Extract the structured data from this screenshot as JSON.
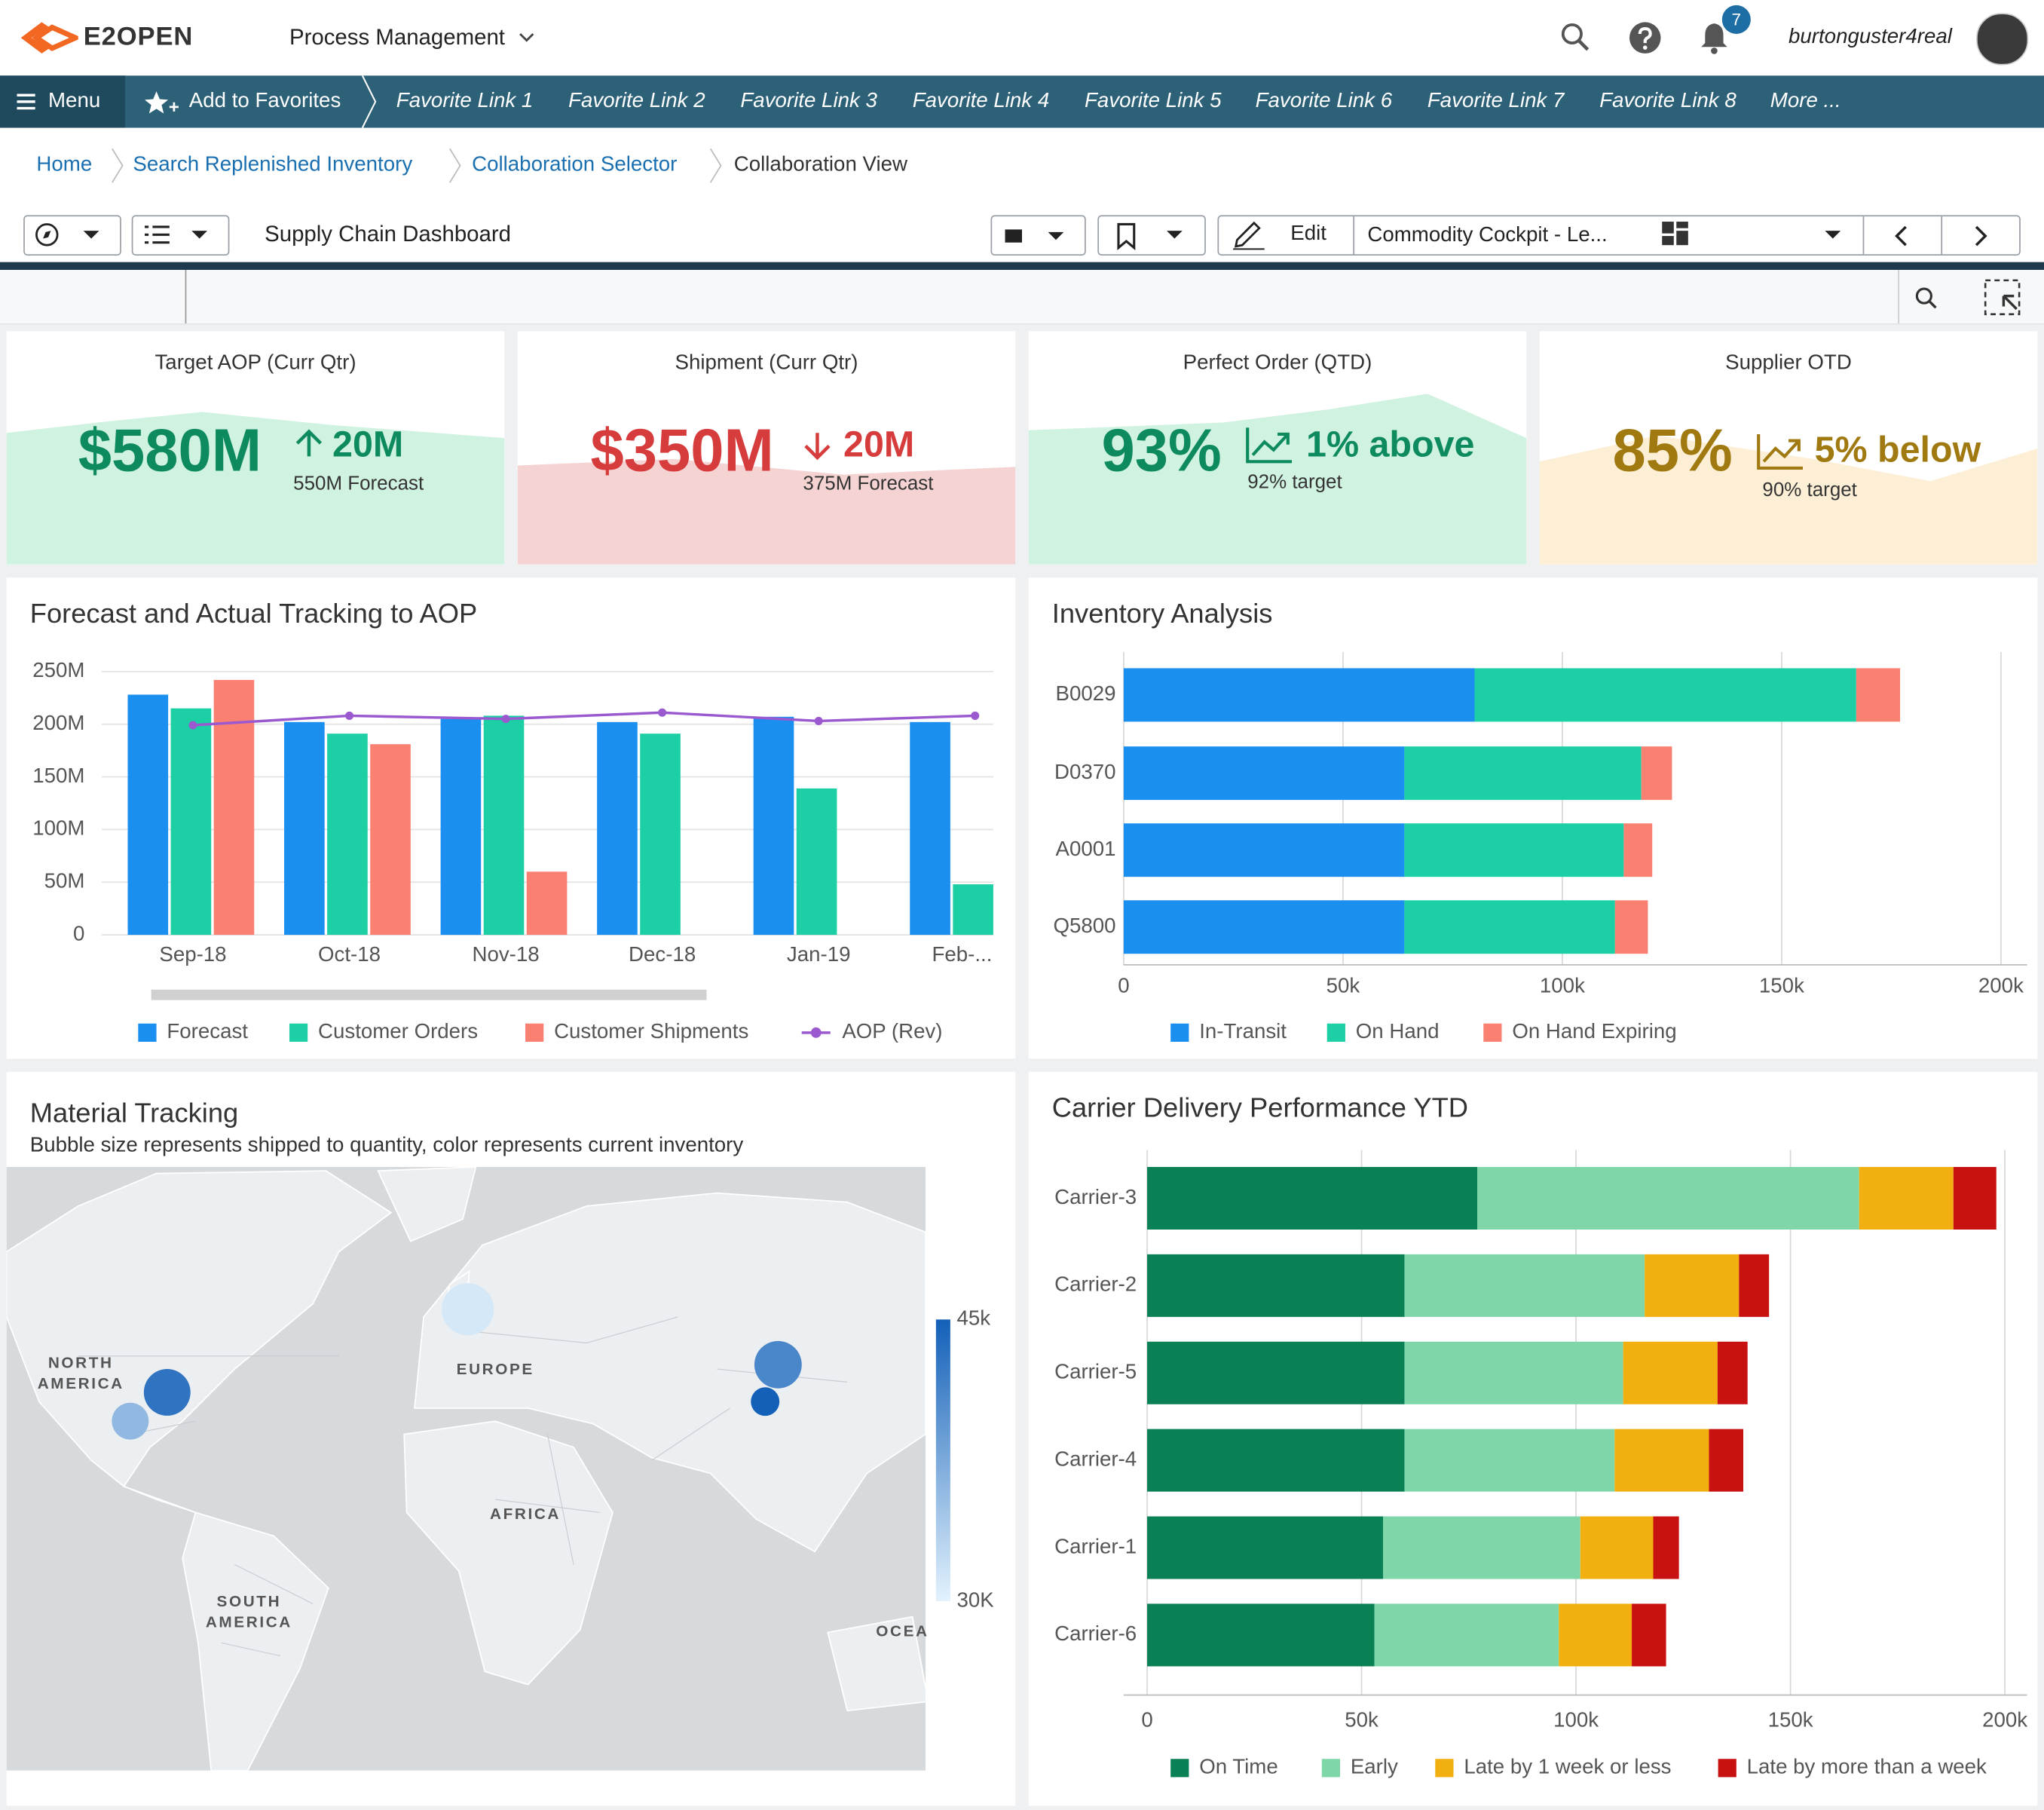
{
  "header": {
    "logo": "E2OPEN",
    "module": "Process Management",
    "notifications": "7",
    "user": "burtonguster4real"
  },
  "nav": {
    "menu": "Menu",
    "favorites": "Add to Favorites",
    "links": [
      "Favorite Link 1",
      "Favorite Link 2",
      "Favorite Link 3",
      "Favorite Link 4",
      "Favorite Link 5",
      "Favorite Link 6",
      "Favorite Link 7",
      "Favorite Link 8"
    ],
    "more": "More ..."
  },
  "breadcrumbs": [
    "Home",
    "Search Replenished Inventory",
    "Collaboration Selector",
    "Collaboration View"
  ],
  "toolbar": {
    "title": "Supply Chain Dashboard",
    "edit": "Edit",
    "view": "Commodity Cockpit - Le..."
  },
  "kpis": [
    {
      "title": "Target AOP (Curr Qtr)",
      "value": "$580M",
      "delta": "20M",
      "note": "550M Forecast"
    },
    {
      "title": "Shipment (Curr Qtr)",
      "value": "$350M",
      "delta": "20M",
      "note": "375M Forecast"
    },
    {
      "title": "Perfect Order (QTD)",
      "value": "93%",
      "delta": "1% above",
      "note": "92% target"
    },
    {
      "title": "Supplier OTD",
      "value": "85%",
      "delta": "5% below",
      "note": "90% target"
    }
  ],
  "chart_data": [
    {
      "type": "bar",
      "title": "Forecast and Actual Tracking to AOP",
      "categories": [
        "Sep-18",
        "Oct-18",
        "Nov-18",
        "Dec-18",
        "Jan-19",
        "Feb-..."
      ],
      "series": [
        {
          "name": "Forecast",
          "color": "#1a8fef",
          "values": [
            228,
            202,
            205,
            202,
            207,
            202
          ]
        },
        {
          "name": "Customer Orders",
          "color": "#1ccfa5",
          "values": [
            215,
            191,
            208,
            191,
            139,
            48
          ]
        },
        {
          "name": "Customer Shipments",
          "color": "#fa8072",
          "values": [
            242,
            181,
            60,
            null,
            null,
            null
          ]
        },
        {
          "name": "AOP (Rev)",
          "type": "line",
          "color": "#9b59d0",
          "values": [
            199,
            208,
            205,
            211,
            203,
            208
          ]
        }
      ],
      "ylim": [
        0,
        250
      ],
      "yticks": [
        0,
        {
          "value": 50,
          "label": "50M"
        },
        {
          "value": 100,
          "label": "100M"
        },
        {
          "value": 150,
          "label": "150M"
        },
        {
          "value": 200,
          "label": "200M"
        },
        {
          "value": 250,
          "label": "250M"
        }
      ],
      "grid": true
    },
    {
      "type": "stacked-barh",
      "title": "Inventory Analysis",
      "categories": [
        "B0029",
        "D0370",
        "A0001",
        "Q5800"
      ],
      "series": [
        {
          "name": "In-Transit",
          "color": "#1a8fef",
          "values": [
            80000,
            64000,
            64000,
            64000
          ]
        },
        {
          "name": "On Hand",
          "color": "#1ccfa5",
          "values": [
            87000,
            54000,
            50000,
            48000
          ]
        },
        {
          "name": "On Hand Expiring",
          "color": "#fa8072",
          "values": [
            10000,
            7000,
            6500,
            7500
          ]
        }
      ],
      "xlim": [
        0,
        200000
      ],
      "xticks": [
        0,
        {
          "value": 50000,
          "label": "50k"
        },
        {
          "value": 100000,
          "label": "100k"
        },
        {
          "value": 150000,
          "label": "150k"
        },
        {
          "value": 200000,
          "label": "200k"
        }
      ],
      "grid": true
    },
    {
      "type": "map",
      "title": "Material Tracking",
      "subtitle": "Bubble size represents shipped to quantity, color represents current inventory",
      "regions": [
        "NORTH AMERICA",
        "EUROPE",
        "AFRICA",
        "SOUTH AMERICA",
        "OCEA"
      ],
      "bubbles": {
        "lon": [
          -76.6,
          -86.6,
          4.9,
          89,
          85.5
        ],
        "lat": [
          37.5,
          29.7,
          60,
          45,
          35
        ],
        "size": [
          320,
          200,
          400,
          330,
          120
        ],
        "values": [
          43000,
          36000,
          31000,
          41000,
          45000
        ]
      },
      "colorlim": [
        30000,
        45000
      ],
      "colors": [
        "#e3f2fd",
        "#1360b8"
      ],
      "colorticks": [
        {
          "value": 30000,
          "label": "30K"
        },
        {
          "value": 45000,
          "label": "45k"
        }
      ]
    },
    {
      "type": "stacked-barh",
      "title": "Carrier Delivery Performance YTD",
      "categories": [
        "Carrier-3",
        "Carrier-2",
        "Carrier-5",
        "Carrier-4",
        "Carrier-1",
        "Carrier-6"
      ],
      "series": [
        {
          "name": "On Time",
          "color": "#0a8055",
          "values": [
            77000,
            60000,
            60000,
            60000,
            55000,
            53000
          ]
        },
        {
          "name": "Early",
          "color": "#7fd6a8",
          "values": [
            89000,
            56000,
            51000,
            49000,
            46000,
            43000
          ]
        },
        {
          "name": "Late by 1 week or less",
          "color": "#f2b010",
          "values": [
            22000,
            22000,
            22000,
            22000,
            17000,
            17000
          ]
        },
        {
          "name": "Late by more than a week",
          "color": "#c81111",
          "values": [
            10000,
            7000,
            7000,
            8000,
            6000,
            8000
          ]
        }
      ],
      "xlim": [
        0,
        200000
      ],
      "xticks": [
        0,
        {
          "value": 50000,
          "label": "50k"
        },
        {
          "value": 100000,
          "label": "100k"
        },
        {
          "value": 150000,
          "label": "150k"
        },
        {
          "value": 200000,
          "label": "200k"
        }
      ],
      "grid": true
    }
  ]
}
